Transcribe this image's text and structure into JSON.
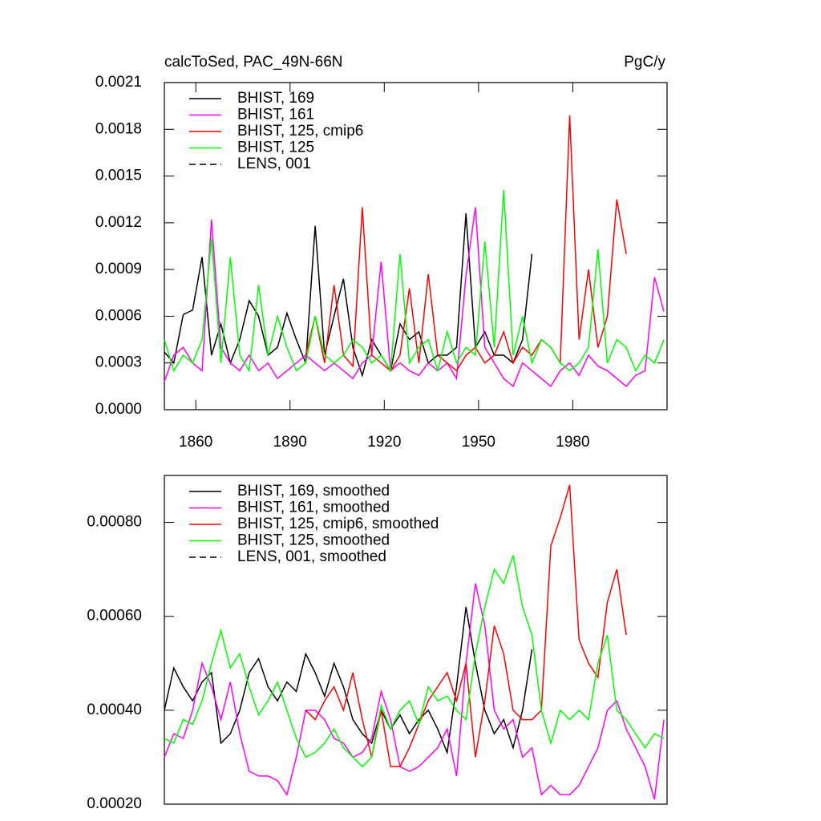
{
  "chart_data": [
    {
      "type": "line",
      "title": "calcToSed, PAC_49N-66N",
      "units": "PgC/y",
      "x": [
        1850,
        1853,
        1856,
        1859,
        1862,
        1865,
        1868,
        1871,
        1874,
        1877,
        1880,
        1883,
        1886,
        1889,
        1892,
        1895,
        1898,
        1901,
        1904,
        1907,
        1910,
        1913,
        1916,
        1919,
        1922,
        1925,
        1928,
        1931,
        1934,
        1937,
        1940,
        1943,
        1946,
        1949,
        1952,
        1955,
        1958,
        1961,
        1964,
        1967,
        1970,
        1973,
        1976,
        1979,
        1982,
        1985,
        1988,
        1991,
        1994,
        1997,
        2000,
        2003,
        2006,
        2009
      ],
      "xlim": [
        1850,
        2010
      ],
      "xticks": [
        1860,
        1890,
        1920,
        1950,
        1980
      ],
      "ylim": [
        0,
        0.0021
      ],
      "yticks": [
        {
          "value": 0,
          "label": "0.0000"
        },
        0.0003,
        0.0006,
        0.0009,
        0.0012,
        0.0015,
        0.0018,
        0.0021
      ],
      "series": [
        {
          "name": "BHIST, 169",
          "color": "#000000",
          "values": [
            0.00037,
            0.0003,
            0.00061,
            0.00064,
            0.00098,
            0.00035,
            0.00055,
            0.0003,
            0.00045,
            0.0007,
            0.0006,
            0.00035,
            0.0004,
            0.00062,
            0.00045,
            0.0003,
            0.00118,
            0.00035,
            0.0006,
            0.00084,
            0.0004,
            0.00022,
            0.00045,
            0.00035,
            0.00025,
            0.00055,
            0.00045,
            0.0005,
            0.0003,
            0.00035,
            0.00035,
            0.0004,
            0.00126,
            0.0004,
            0.0005,
            0.00035,
            0.00035,
            0.0003,
            0.00045,
            0.001,
            null,
            null,
            null,
            null,
            null,
            null,
            null,
            null,
            null,
            null,
            null,
            null,
            null,
            null
          ]
        },
        {
          "name": "BHIST, 161",
          "color": "#ff00ff",
          "values": [
            0.00018,
            0.00035,
            0.0004,
            0.0003,
            0.00025,
            0.00122,
            0.0004,
            0.0003,
            0.00025,
            0.00035,
            0.00025,
            0.0003,
            0.0002,
            0.00025,
            0.0003,
            0.00035,
            0.0003,
            0.00025,
            0.0003,
            0.00025,
            0.0002,
            0.0003,
            0.00035,
            0.00095,
            0.00025,
            0.0003,
            0.00025,
            0.00022,
            0.0003,
            0.00025,
            0.0003,
            0.0002,
            0.00086,
            0.0013,
            0.0004,
            0.0003,
            0.0002,
            0.00015,
            0.0003,
            0.00025,
            0.0002,
            0.00015,
            0.00025,
            0.0003,
            0.00022,
            0.00035,
            0.00028,
            0.00025,
            0.0002,
            0.00015,
            0.00022,
            0.00025,
            0.00085,
            0.00063
          ]
        },
        {
          "name": "BHIST, 125, cmip6",
          "color": "#ff0000",
          "values": [
            null,
            null,
            null,
            null,
            null,
            null,
            null,
            null,
            null,
            null,
            null,
            null,
            null,
            null,
            null,
            0.00035,
            0.0006,
            0.0003,
            0.0008,
            0.00035,
            0.00028,
            0.0013,
            0.00035,
            0.0003,
            0.00025,
            0.00035,
            0.00078,
            0.0003,
            0.00087,
            0.00035,
            0.0003,
            0.00025,
            0.00035,
            0.0004,
            0.0003,
            0.00035,
            0.0005,
            0.0003,
            0.0004,
            0.00035,
            0.00045,
            0.0004,
            0.0003,
            0.00189,
            0.00045,
            0.0009,
            0.0004,
            0.0006,
            0.00135,
            0.001,
            null,
            null,
            null,
            null
          ]
        },
        {
          "name": "BHIST, 125",
          "color": "#00ff00",
          "values": [
            0.00045,
            0.00025,
            0.00035,
            0.0003,
            0.00045,
            0.0011,
            0.0003,
            0.00098,
            0.00035,
            0.00025,
            0.0008,
            0.00035,
            0.0006,
            0.0004,
            0.00025,
            0.0003,
            0.0006,
            0.00035,
            0.0003,
            0.00035,
            0.00045,
            0.0004,
            0.0003,
            0.00035,
            0.00025,
            0.001,
            0.0003,
            0.0004,
            0.00045,
            0.00025,
            0.0005,
            0.0003,
            0.0004,
            0.00035,
            0.00108,
            0.0004,
            0.00141,
            0.00035,
            0.0006,
            0.0003,
            0.00045,
            0.0004,
            0.0003,
            0.00025,
            0.0003,
            0.0004,
            0.00103,
            0.0003,
            0.00045,
            0.0004,
            0.00025,
            0.00035,
            0.0003,
            0.00045
          ]
        },
        {
          "name": "LENS, 001",
          "color": "#000000",
          "dashed": true,
          "values": [
            null,
            null,
            null,
            null,
            null,
            null,
            null,
            null,
            null,
            null,
            null,
            null,
            null,
            null,
            null,
            null,
            null,
            null,
            null,
            null,
            null,
            null,
            null,
            null,
            null,
            null,
            null,
            null,
            null,
            null,
            null,
            null,
            null,
            null,
            null,
            null,
            null,
            null,
            null,
            null,
            null,
            null,
            null,
            null,
            null,
            null,
            null,
            null,
            null,
            null,
            null,
            null,
            null,
            null
          ]
        }
      ]
    },
    {
      "type": "line",
      "x": [
        1850,
        1853,
        1856,
        1859,
        1862,
        1865,
        1868,
        1871,
        1874,
        1877,
        1880,
        1883,
        1886,
        1889,
        1892,
        1895,
        1898,
        1901,
        1904,
        1907,
        1910,
        1913,
        1916,
        1919,
        1922,
        1925,
        1928,
        1931,
        1934,
        1937,
        1940,
        1943,
        1946,
        1949,
        1952,
        1955,
        1958,
        1961,
        1964,
        1967,
        1970,
        1973,
        1976,
        1979,
        1982,
        1985,
        1988,
        1991,
        1994,
        1997,
        2000,
        2003,
        2006,
        2009
      ],
      "xlim": [
        1850,
        2010
      ],
      "ylim": [
        0.0002,
        0.0009
      ],
      "yticks": [
        {
          "value": 0.0002,
          "label": "0.00020"
        },
        {
          "value": 0.0004,
          "label": "0.00040"
        },
        {
          "value": 0.0006,
          "label": "0.00060"
        },
        {
          "value": 0.0008,
          "label": "0.00080"
        }
      ],
      "series": [
        {
          "name": "BHIST, 169, smoothed",
          "color": "#000000",
          "values": [
            0.0004,
            0.00049,
            0.00045,
            0.00042,
            0.00046,
            0.00048,
            0.00033,
            0.00035,
            0.0004,
            0.00048,
            0.00051,
            0.00045,
            0.00042,
            0.00046,
            0.00044,
            0.00052,
            0.00048,
            0.00043,
            0.0005,
            0.00045,
            0.00038,
            0.00035,
            0.00033,
            0.0004,
            0.00036,
            0.00039,
            0.00035,
            0.00038,
            0.0004,
            0.00036,
            0.00031,
            0.00045,
            0.00062,
            0.0005,
            0.0004,
            0.00035,
            0.00038,
            0.00032,
            0.0004,
            0.00053,
            null,
            null,
            null,
            null,
            null,
            null,
            null,
            null,
            null,
            null,
            null,
            null,
            null,
            null
          ]
        },
        {
          "name": "BHIST, 161, smoothed",
          "color": "#ff00ff",
          "values": [
            0.0003,
            0.00035,
            0.00034,
            0.0004,
            0.0005,
            0.00045,
            0.00038,
            0.00046,
            0.00035,
            0.00027,
            0.00026,
            0.00026,
            0.00025,
            0.00022,
            0.0003,
            0.0004,
            0.0004,
            0.00038,
            0.00034,
            0.00033,
            0.0003,
            0.00031,
            0.00034,
            0.00044,
            0.00038,
            0.00028,
            0.00027,
            0.00028,
            0.0003,
            0.00032,
            0.00036,
            0.00026,
            0.0005,
            0.00067,
            0.00058,
            0.0004,
            0.00036,
            0.00038,
            0.0003,
            0.00032,
            0.00022,
            0.00024,
            0.00022,
            0.00022,
            0.00024,
            0.00028,
            0.00032,
            0.0004,
            0.00042,
            0.00036,
            0.00032,
            0.00028,
            0.00021,
            0.00038
          ]
        },
        {
          "name": "BHIST, 125, cmip6, smoothed",
          "color": "#ff0000",
          "values": [
            null,
            null,
            null,
            null,
            null,
            null,
            null,
            null,
            null,
            null,
            null,
            null,
            null,
            null,
            null,
            0.0004,
            0.00038,
            0.00042,
            0.00045,
            0.0004,
            0.00048,
            0.00038,
            0.0003,
            0.0004,
            0.00028,
            0.00028,
            0.00032,
            0.00037,
            0.00042,
            0.00045,
            0.00048,
            0.00042,
            0.0005,
            0.0003,
            0.00042,
            0.00058,
            0.00052,
            0.0004,
            0.00038,
            0.00038,
            0.0004,
            0.00075,
            0.00081,
            0.00088,
            0.00055,
            0.0005,
            0.00047,
            0.00063,
            0.0007,
            0.00056,
            null,
            null,
            null,
            null
          ]
        },
        {
          "name": "BHIST, 125, smoothed",
          "color": "#00ff00",
          "values": [
            0.00034,
            0.00033,
            0.00038,
            0.00037,
            0.00042,
            0.0005,
            0.00057,
            0.00049,
            0.00052,
            0.00045,
            0.00039,
            0.00042,
            0.00046,
            0.0004,
            0.00034,
            0.0003,
            0.00031,
            0.00033,
            0.00036,
            0.00032,
            0.0003,
            0.00028,
            0.0003,
            0.00041,
            0.00036,
            0.0004,
            0.00042,
            0.00037,
            0.00045,
            0.00042,
            0.00043,
            0.0004,
            0.00038,
            0.00052,
            0.00062,
            0.0007,
            0.00067,
            0.00073,
            0.00062,
            0.00056,
            0.0004,
            0.00033,
            0.0004,
            0.00038,
            0.0004,
            0.00038,
            0.0005,
            0.00056,
            0.0004,
            0.00038,
            0.00035,
            0.00032,
            0.00035,
            0.00034
          ]
        },
        {
          "name": "LENS, 001, smoothed",
          "color": "#000000",
          "dashed": true,
          "values": [
            null,
            null,
            null,
            null,
            null,
            null,
            null,
            null,
            null,
            null,
            null,
            null,
            null,
            null,
            null,
            null,
            null,
            null,
            null,
            null,
            null,
            null,
            null,
            null,
            null,
            null,
            null,
            null,
            null,
            null,
            null,
            null,
            null,
            null,
            null,
            null,
            null,
            null,
            null,
            null,
            null,
            null,
            null,
            null,
            null,
            null,
            null,
            null,
            null,
            null,
            null,
            null,
            null,
            null
          ]
        }
      ]
    }
  ]
}
